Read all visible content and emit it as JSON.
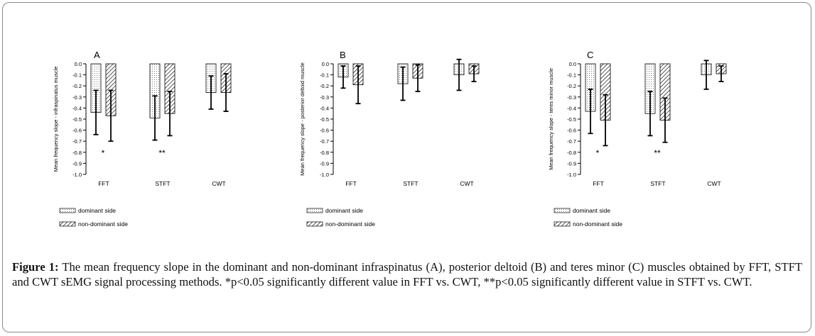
{
  "caption": {
    "label": "Figure 1:",
    "text": "The mean frequency slope in the dominant and non-dominant infraspinatus (A), posterior deltoid (B) and teres minor (C) muscles obtained by FFT, STFT and CWT sEMG signal processing methods. *p<0.05 significantly different value in FFT vs. CWT, **p<0.05 significantly different value in STFT vs. CWT."
  },
  "colors": {
    "axis": "#000000",
    "bar_border": "#000000",
    "text": "#000000"
  },
  "chart_data": [
    {
      "type": "bar",
      "panel_label": "A",
      "ylabel": "Mean frequency slope  -  infraspinatus muscle",
      "xlabel": "",
      "categories": [
        "FFT",
        "STFT",
        "CWT"
      ],
      "ylim": [
        -1.0,
        0.0
      ],
      "yticks": [
        "0.0",
        "-0.1",
        "-0.2",
        "-0.3",
        "-0.4",
        "-0.5",
        "-0.6",
        "-0.7",
        "-0.8",
        "-0.9",
        "-1.0"
      ],
      "series": [
        {
          "name": "dominant side",
          "pattern": "dots",
          "values": [
            -0.44,
            -0.49,
            -0.26
          ],
          "error": [
            0.2,
            0.2,
            0.15
          ]
        },
        {
          "name": "non-dominant side",
          "pattern": "hatch",
          "values": [
            -0.47,
            -0.45,
            -0.26
          ],
          "error": [
            0.23,
            0.2,
            0.17
          ]
        }
      ],
      "annotations": [
        "*",
        "**",
        ""
      ],
      "legend_position": "bottom-left"
    },
    {
      "type": "bar",
      "panel_label": "B",
      "ylabel": "Mean frequency slope  -  posterior deltoid muscle",
      "xlabel": "",
      "categories": [
        "FFT",
        "STFT",
        "CWT"
      ],
      "ylim": [
        -1.0,
        0.0
      ],
      "yticks": [
        "0.0",
        "-0.1",
        "-0.2",
        "-0.3",
        "-0.4",
        "-0.5",
        "-0.6",
        "-0.7",
        "-0.8",
        "-0.9",
        "-1.0"
      ],
      "series": [
        {
          "name": "dominant side",
          "pattern": "dots",
          "values": [
            -0.12,
            -0.18,
            -0.1
          ],
          "error": [
            0.1,
            0.15,
            0.14
          ]
        },
        {
          "name": "non-dominant side",
          "pattern": "hatch",
          "values": [
            -0.19,
            -0.13,
            -0.09
          ],
          "error": [
            0.17,
            0.12,
            0.07
          ]
        }
      ],
      "annotations": [
        "",
        "",
        ""
      ],
      "legend_position": "bottom-left"
    },
    {
      "type": "bar",
      "panel_label": "C",
      "ylabel": "Mean frequency slope  -  teres minor muscle",
      "xlabel": "",
      "categories": [
        "FFT",
        "STFT",
        "CWT"
      ],
      "ylim": [
        -1.0,
        0.0
      ],
      "yticks": [
        "0.0",
        "-0.1",
        "-0.2",
        "-0.3",
        "-0.4",
        "-0.5",
        "-0.6",
        "-0.7",
        "-0.8",
        "-0.9",
        "-1.0"
      ],
      "series": [
        {
          "name": "dominant side",
          "pattern": "dots",
          "values": [
            -0.43,
            -0.45,
            -0.1
          ],
          "error": [
            0.2,
            0.2,
            0.13
          ]
        },
        {
          "name": "non-dominant side",
          "pattern": "hatch",
          "values": [
            -0.51,
            -0.51,
            -0.09
          ],
          "error": [
            0.23,
            0.2,
            0.07
          ]
        }
      ],
      "annotations": [
        "*",
        "**",
        ""
      ],
      "legend_position": "bottom-left"
    }
  ]
}
